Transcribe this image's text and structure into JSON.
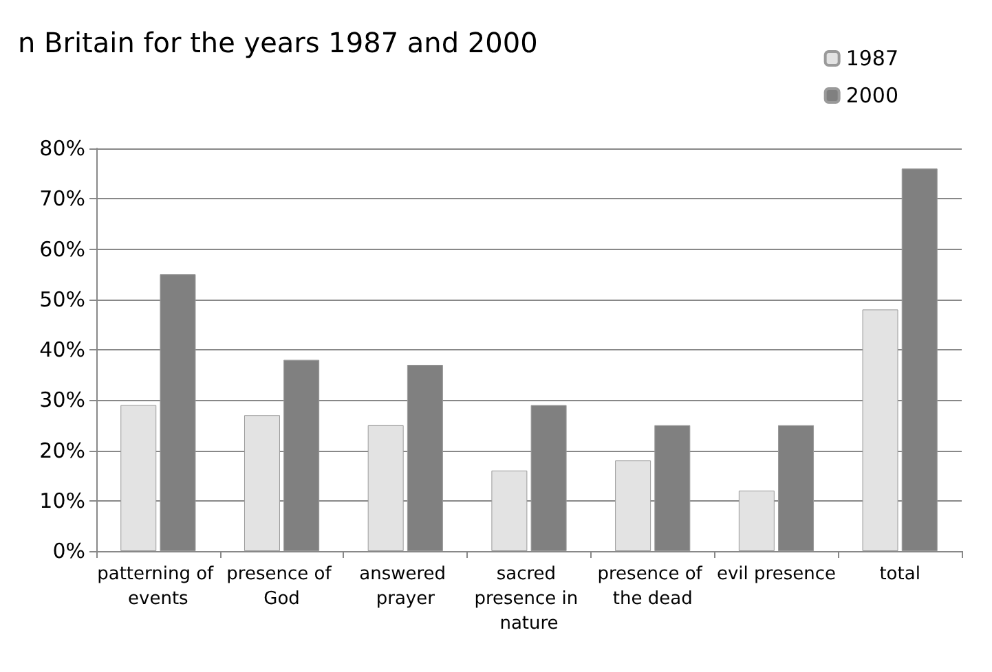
{
  "chart_data": {
    "type": "bar",
    "title": "n Britain for the years 1987 and 2000",
    "categories": [
      "patterning of events",
      "presence of God",
      "answered prayer",
      "sacred presence in nature",
      "presence of the dead",
      "evil presence",
      "total"
    ],
    "series": [
      {
        "name": "1987",
        "color": "#e3e3e3",
        "values": [
          29,
          27,
          25,
          16,
          18,
          12,
          48
        ]
      },
      {
        "name": "2000",
        "color": "#808080",
        "values": [
          55,
          38,
          37,
          29,
          25,
          25,
          76
        ]
      }
    ],
    "ylim": [
      0,
      80
    ],
    "yticks": [
      {
        "value": 0,
        "label": "0%"
      },
      {
        "value": 10,
        "label": "10%"
      },
      {
        "value": 20,
        "label": "20%"
      },
      {
        "value": 30,
        "label": "30%"
      },
      {
        "value": 40,
        "label": "40%"
      },
      {
        "value": 50,
        "label": "50%"
      },
      {
        "value": 60,
        "label": "60%"
      },
      {
        "value": 70,
        "label": "70%"
      },
      {
        "value": 80,
        "label": "80%"
      }
    ],
    "grid": "y",
    "legend": "top right"
  }
}
